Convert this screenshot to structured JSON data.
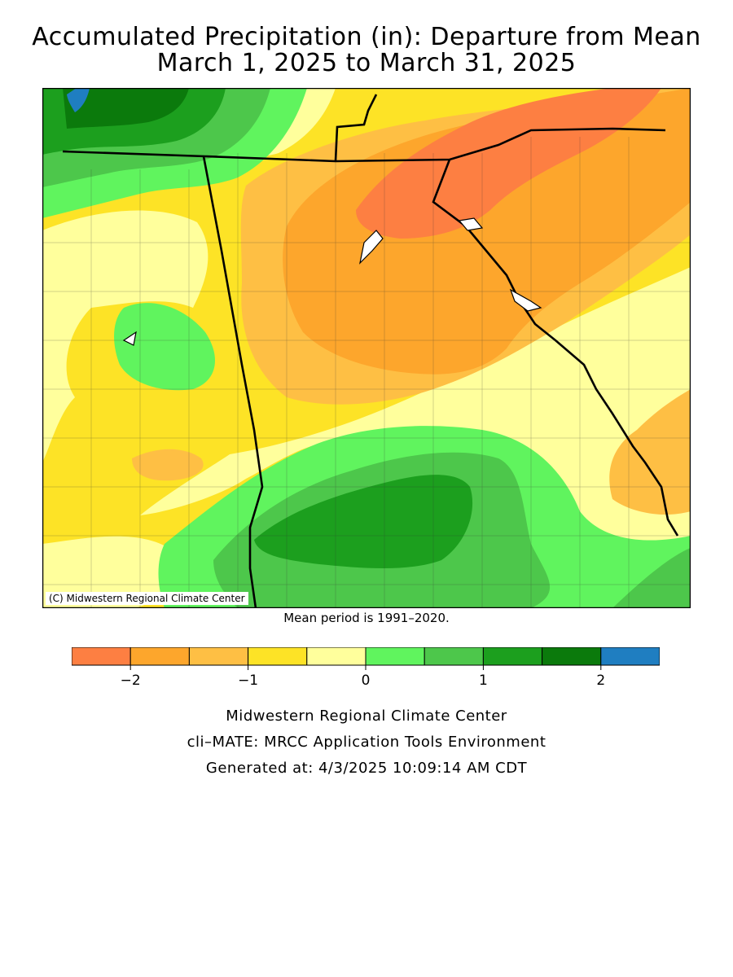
{
  "title": {
    "line1": "Accumulated Precipitation (in): Departure from Mean",
    "line2": "March 1, 2025 to March 31, 2025"
  },
  "map": {
    "credit": "(C) Midwestern Regional Climate Center",
    "mean_note": "Mean period is 1991–2020."
  },
  "legend": {
    "colors": [
      "#fd7f42",
      "#fda62c",
      "#febf44",
      "#fde326",
      "#ffff9c",
      "#60f45e",
      "#4dc74b",
      "#1c9f1e",
      "#0b7a0c",
      "#1f7ec1"
    ],
    "tick_labels": [
      "−2",
      "−1",
      "0",
      "1",
      "2"
    ],
    "tick_values": [
      -2,
      -1,
      0,
      1,
      2
    ],
    "bin_edges": [
      -2.5,
      -2,
      -1.5,
      -1,
      -0.5,
      0,
      0.5,
      1,
      1.5,
      2,
      2.5
    ]
  },
  "footer": {
    "line1": "Midwestern Regional Climate Center",
    "line2": "cli–MATE: MRCC Application Tools Environment",
    "line3": "Generated at: 4/3/2025 10:09:14 AM CDT"
  }
}
